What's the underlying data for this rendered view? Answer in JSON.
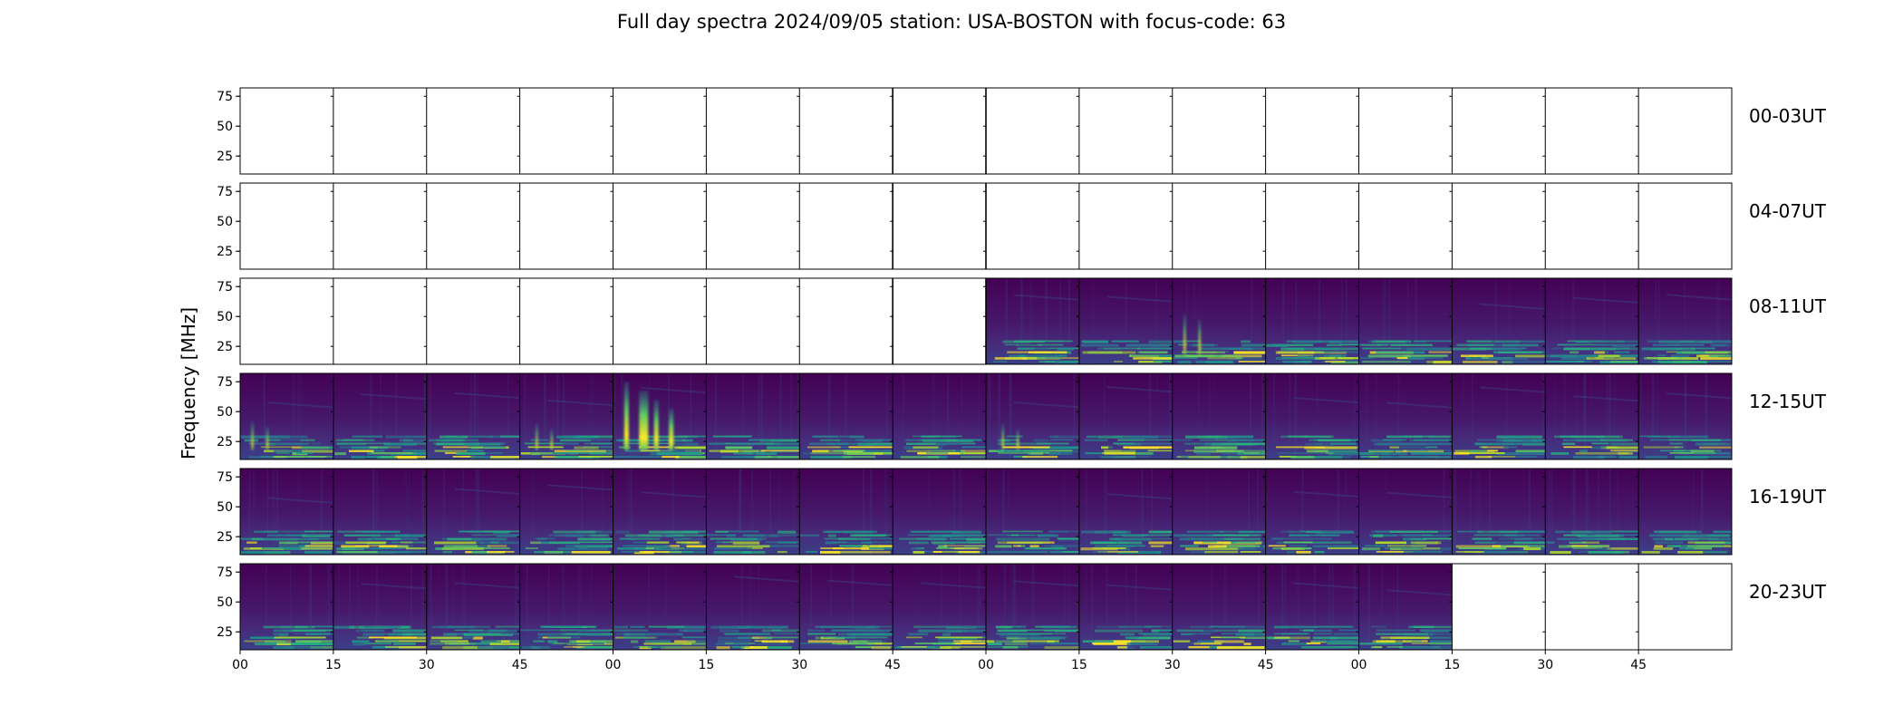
{
  "chart_data": {
    "type": "heatmap",
    "title": "Full day spectra 2024/09/05 station: USA-BOSTON with focus-code: 63",
    "ylabel": "Frequency [MHz]",
    "xlabel": "",
    "y_ticks": [
      25,
      50,
      75
    ],
    "ylim": [
      10,
      82
    ],
    "x_ticks": [
      "00",
      "15",
      "30",
      "45",
      "00",
      "15",
      "30",
      "45",
      "00",
      "15",
      "30",
      "45",
      "00",
      "15",
      "30",
      "45"
    ],
    "colormap": "viridis",
    "colors": [
      "#440154",
      "#3b528b",
      "#21918c",
      "#5ec962",
      "#fde725"
    ],
    "panels_per_row": 16,
    "panel_minutes": 15,
    "rows": [
      {
        "label": "00-03UT",
        "has_data": [
          0,
          0,
          0,
          0,
          0,
          0,
          0,
          0,
          0,
          0,
          0,
          0,
          0,
          0,
          0,
          0
        ]
      },
      {
        "label": "04-07UT",
        "has_data": [
          0,
          0,
          0,
          0,
          0,
          0,
          0,
          0,
          0,
          0,
          0,
          0,
          0,
          0,
          0,
          0
        ]
      },
      {
        "label": "08-11UT",
        "has_data": [
          0,
          0,
          0,
          0,
          0,
          0,
          0,
          0,
          1,
          1,
          1,
          1,
          1,
          1,
          1,
          1
        ]
      },
      {
        "label": "12-15UT",
        "has_data": [
          1,
          1,
          1,
          1,
          1,
          1,
          1,
          1,
          1,
          1,
          1,
          1,
          1,
          1,
          1,
          1
        ]
      },
      {
        "label": "16-19UT",
        "has_data": [
          1,
          1,
          1,
          1,
          1,
          1,
          1,
          1,
          1,
          1,
          1,
          1,
          1,
          1,
          1,
          1
        ]
      },
      {
        "label": "20-23UT",
        "has_data": [
          1,
          1,
          1,
          1,
          1,
          1,
          1,
          1,
          1,
          1,
          1,
          1,
          1,
          0,
          0,
          0
        ]
      }
    ],
    "bursts": [
      {
        "row": "12-15UT",
        "panel": 0,
        "frequency_top": 42,
        "intensity": 0.55
      },
      {
        "row": "12-15UT",
        "panel": 3,
        "frequency_top": 40,
        "intensity": 0.5
      },
      {
        "row": "12-15UT",
        "panel": 4,
        "frequency_top": 75,
        "intensity": 1.0
      },
      {
        "row": "12-15UT",
        "panel": 8,
        "frequency_top": 40,
        "intensity": 0.45
      },
      {
        "row": "08-11UT",
        "panel": 10,
        "frequency_top": 52,
        "intensity": 0.7
      }
    ]
  }
}
